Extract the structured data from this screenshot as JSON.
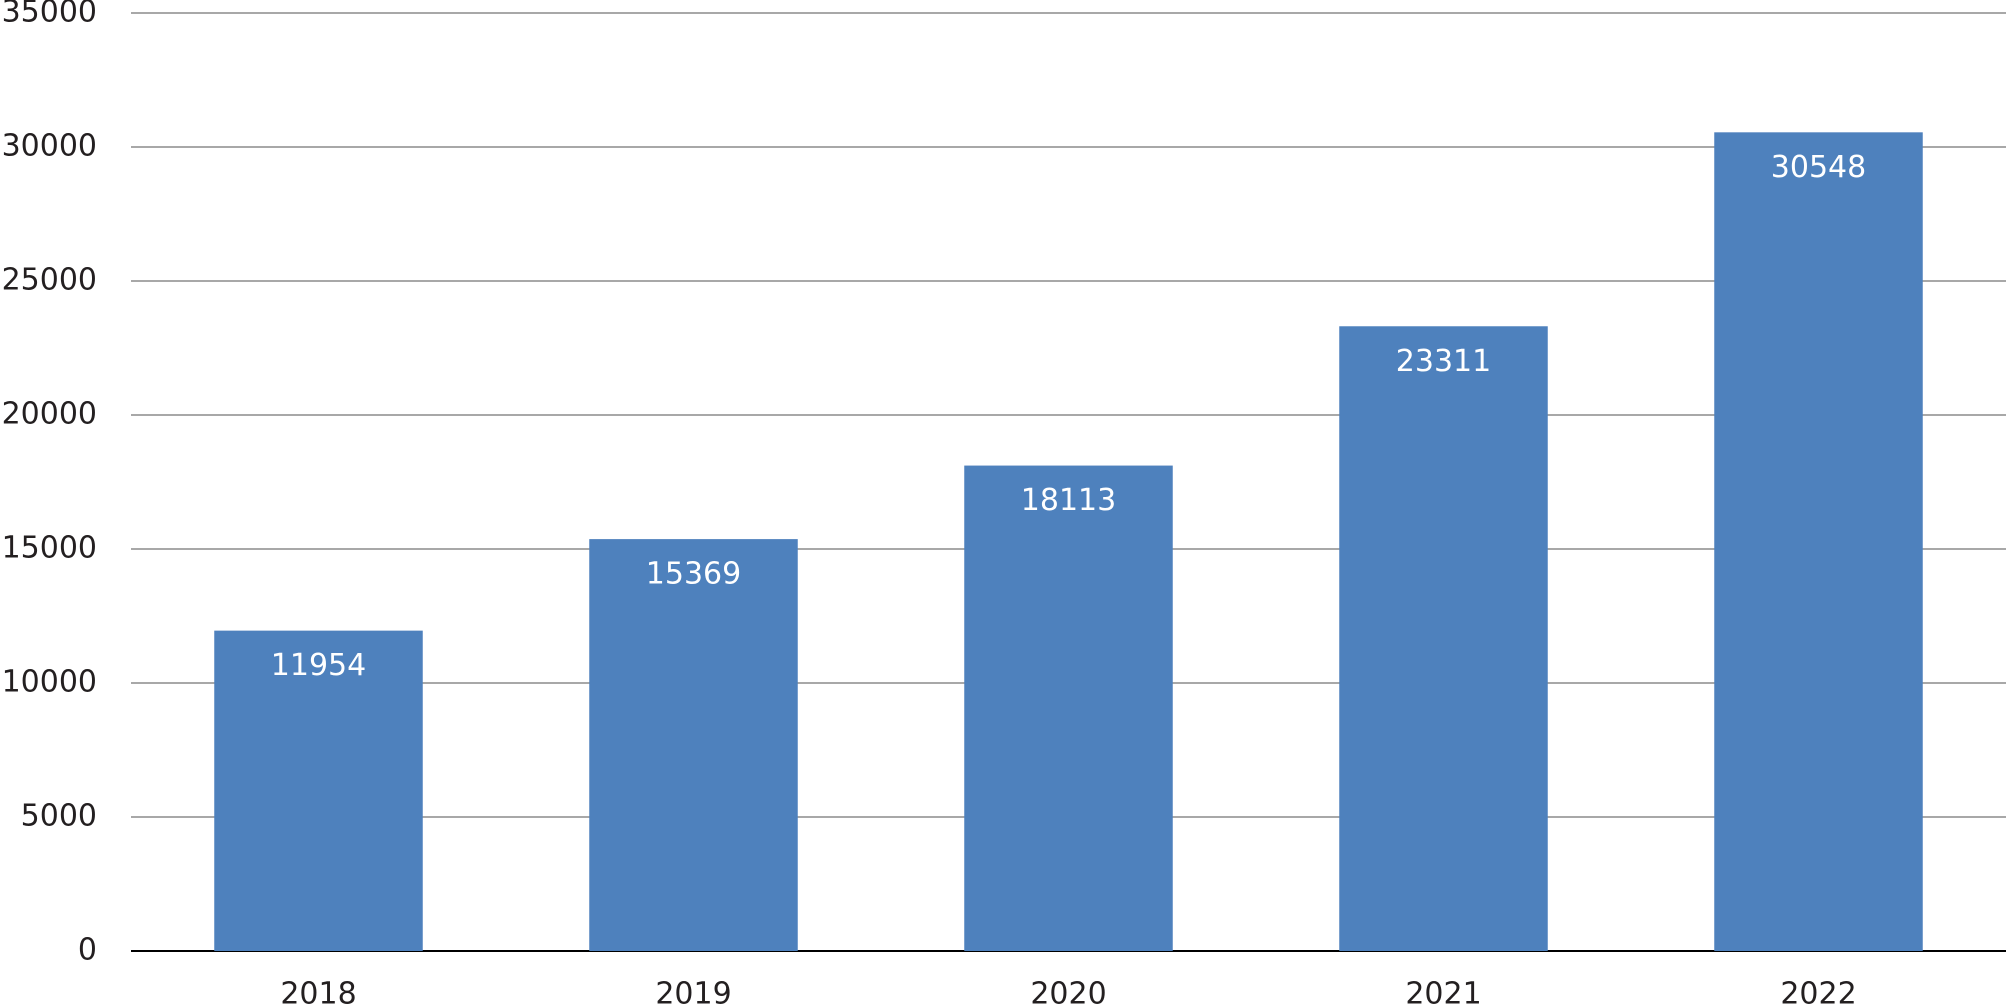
{
  "chart_data": {
    "type": "bar",
    "categories": [
      "2018",
      "2019",
      "2020",
      "2021",
      "2022"
    ],
    "values": [
      11954,
      15369,
      18113,
      23311,
      30548
    ],
    "color": "#4e81bd",
    "ylim": [
      0,
      35000
    ],
    "yticks": [
      0,
      5000,
      10000,
      15000,
      20000,
      25000,
      30000,
      35000
    ],
    "grid": true
  }
}
